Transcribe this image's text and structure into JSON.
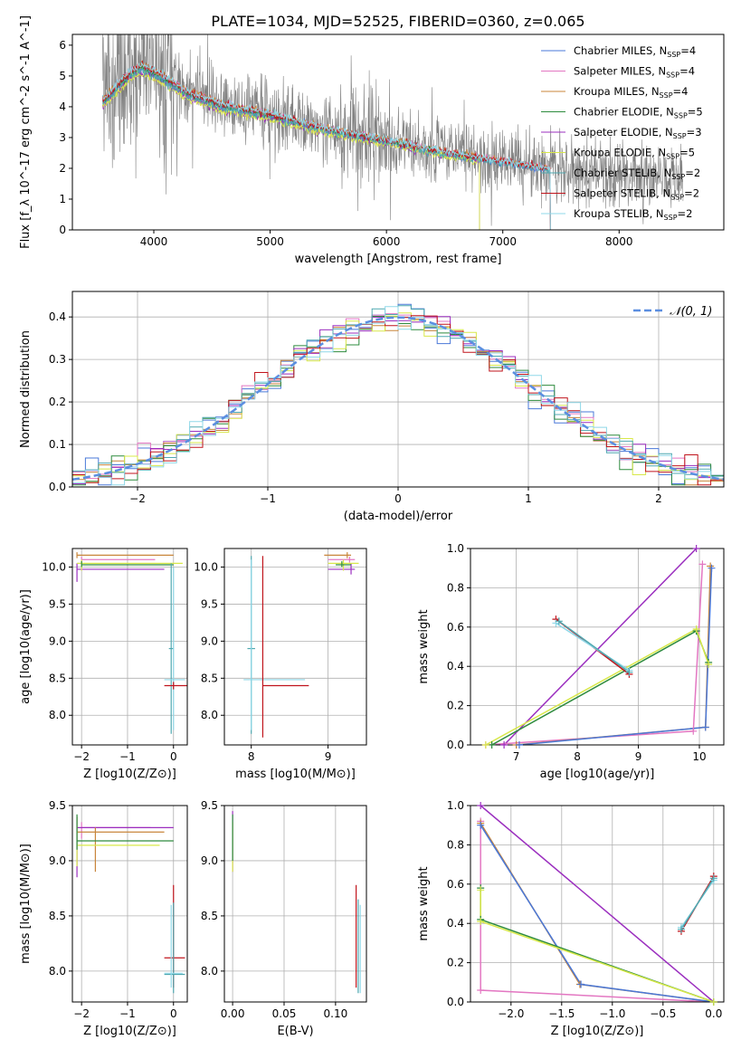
{
  "figure_title": "PLATE=1034, MJD=52525, FIBERID=0360, z=0.065",
  "colors": {
    "Chabrier MILES": "#4a78d8",
    "Salpeter MILES": "#e377c2",
    "Kroupa MILES": "#c8853a",
    "Chabrier ELODIE": "#2e8b3e",
    "Salpeter ELODIE": "#9b2fbf",
    "Kroupa ELODIE": "#d8e84a",
    "Chabrier STELIB": "#4fa8b0",
    "Salpeter STELIB": "#c0141c",
    "Kroupa STELIB": "#8fd8e8",
    "data": "#808080",
    "normal": "#5b8ee0"
  },
  "legend_spectrum": [
    {
      "name": "Chabrier MILES",
      "sub": "SSP",
      "n": "4",
      "color_key": "Chabrier MILES"
    },
    {
      "name": "Salpeter MILES",
      "sub": "SSP",
      "n": "4",
      "color_key": "Salpeter MILES"
    },
    {
      "name": "Kroupa MILES",
      "sub": "SSP",
      "n": "4",
      "color_key": "Kroupa MILES"
    },
    {
      "name": "Chabrier ELODIE",
      "sub": "SSP",
      "n": "5",
      "color_key": "Chabrier ELODIE"
    },
    {
      "name": "Salpeter ELODIE",
      "sub": "SSP",
      "n": "3",
      "color_key": "Salpeter ELODIE"
    },
    {
      "name": "Kroupa ELODIE",
      "sub": "SSP",
      "n": "5",
      "color_key": "Kroupa ELODIE"
    },
    {
      "name": "Chabrier STELIB",
      "sub": "SSP",
      "n": "2",
      "color_key": "Chabrier STELIB"
    },
    {
      "name": "Salpeter STELIB",
      "sub": "SSP",
      "n": "2",
      "color_key": "Salpeter STELIB"
    },
    {
      "name": "Kroupa STELIB",
      "sub": "SSP",
      "n": "2",
      "color_key": "Kroupa STELIB"
    }
  ],
  "chart_data": [
    {
      "id": "spectrum",
      "type": "line",
      "xlabel": "wavelength [Angstrom, rest frame]",
      "ylabel": "Flux [f_λ 10^-17 erg cm^-2 s^-1 A^-1]",
      "xlim": [
        3300,
        8900
      ],
      "ylim": [
        0,
        6.35
      ],
      "xticks": [
        4000,
        5000,
        6000,
        7000,
        8000
      ],
      "yticks": [
        0,
        1,
        2,
        3,
        4,
        5,
        6
      ],
      "grid": false,
      "legend_position": "top-right",
      "data_range": [
        3560,
        8550
      ],
      "model_ranges": {
        "MILES": [
          3560,
          7410
        ],
        "ELODIE": [
          3560,
          6800
        ],
        "STELIB": [
          3560,
          7410
        ]
      },
      "continuum_points": [
        [
          3580,
          4.3
        ],
        [
          3700,
          4.8
        ],
        [
          3800,
          5.2
        ],
        [
          3900,
          5.4
        ],
        [
          4000,
          5.2
        ],
        [
          4100,
          5.0
        ],
        [
          4300,
          4.5
        ],
        [
          4600,
          4.1
        ],
        [
          5000,
          3.8
        ],
        [
          5500,
          3.3
        ],
        [
          6000,
          2.95
        ],
        [
          6500,
          2.55
        ],
        [
          7000,
          2.25
        ],
        [
          7500,
          1.95
        ],
        [
          8000,
          1.8
        ],
        [
          8500,
          1.65
        ]
      ]
    },
    {
      "id": "residual-histogram",
      "type": "area",
      "xlabel": "(data-model)/error",
      "ylabel": "Normed distribution",
      "xlim": [
        -2.5,
        2.5
      ],
      "ylim": [
        0,
        0.46
      ],
      "xticks": [
        -2,
        -1,
        0,
        1,
        2
      ],
      "yticks": [
        0.0,
        0.1,
        0.2,
        0.3,
        0.4
      ],
      "grid": true,
      "legend_position": "top-right",
      "legend": [
        {
          "name": "𝒩(0, 1)",
          "style": "dashed",
          "color_key": "normal"
        }
      ],
      "bin_width": 0.1,
      "n_models": 9
    },
    {
      "id": "age-vs-metallicity",
      "type": "scatter",
      "xlabel": "Z [log10(Z/Z⊙)]",
      "ylabel": "age  [log10(age/yr)]",
      "xlim": [
        -2.2,
        0.3
      ],
      "ylim": [
        7.6,
        10.25
      ],
      "xticks": [
        -2,
        -1,
        0
      ],
      "yticks": [
        8.0,
        8.5,
        9.0,
        9.5,
        10.0
      ],
      "grid": true,
      "points": [
        {
          "m": "Kroupa MILES",
          "x": -2.1,
          "y": 10.16,
          "xlo": -2.1,
          "xhi": 0.0,
          "ylo": 10.12,
          "yhi": 10.2
        },
        {
          "m": "Salpeter MILES",
          "x": -2.0,
          "y": 10.1,
          "xlo": -2.0,
          "xhi": -0.4,
          "ylo": 10.06,
          "yhi": 10.14
        },
        {
          "m": "Salpeter ELODIE",
          "x": -2.1,
          "y": 9.97,
          "xlo": -2.1,
          "xhi": -0.2,
          "ylo": 9.8,
          "yhi": 10.05
        },
        {
          "m": "Kroupa ELODIE",
          "x": -2.0,
          "y": 10.05,
          "xlo": -2.1,
          "xhi": 0.2,
          "ylo": 9.95,
          "yhi": 10.1
        },
        {
          "m": "Chabrier ELODIE",
          "x": -2.0,
          "y": 10.03,
          "xlo": -2.0,
          "xhi": 0.0,
          "ylo": 10.0,
          "yhi": 10.08
        },
        {
          "m": "Chabrier STELIB",
          "x": -0.05,
          "y": 8.9,
          "xlo": -0.1,
          "xhi": 0.0,
          "ylo": 7.75,
          "yhi": 10.05
        },
        {
          "m": "Kroupa STELIB",
          "x": 0.0,
          "y": 8.48,
          "xlo": -0.2,
          "xhi": 0.25,
          "ylo": 7.8,
          "yhi": 10.0
        },
        {
          "m": "Salpeter STELIB",
          "x": 0.0,
          "y": 8.4,
          "xlo": -0.2,
          "xhi": 0.3,
          "ylo": 8.35,
          "yhi": 8.45
        }
      ]
    },
    {
      "id": "age-vs-mass",
      "type": "scatter",
      "xlabel": "mass [log10(M/M⊙)]",
      "ylabel": "",
      "xlim": [
        7.65,
        9.5
      ],
      "ylim": [
        7.6,
        10.25
      ],
      "xticks": [
        8,
        9
      ],
      "yticks": [
        8.0,
        8.5,
        9.0,
        9.5,
        10.0
      ],
      "grid": true,
      "points": [
        {
          "m": "Kroupa MILES",
          "x": 9.25,
          "y": 10.16,
          "xlo": 8.95,
          "xhi": 9.3,
          "ylo": 10.12,
          "yhi": 10.2
        },
        {
          "m": "Salpeter MILES",
          "x": 9.28,
          "y": 10.1,
          "xlo": 9.0,
          "xhi": 9.35,
          "ylo": 10.06,
          "yhi": 10.14
        },
        {
          "m": "Salpeter ELODIE",
          "x": 9.3,
          "y": 9.97,
          "xlo": 9.0,
          "xhi": 9.35,
          "ylo": 9.9,
          "yhi": 10.05
        },
        {
          "m": "Kroupa ELODIE",
          "x": 9.2,
          "y": 10.05,
          "xlo": 9.0,
          "xhi": 9.4,
          "ylo": 9.95,
          "yhi": 10.1
        },
        {
          "m": "Chabrier ELODIE",
          "x": 9.18,
          "y": 10.03,
          "xlo": 9.1,
          "xhi": 9.3,
          "ylo": 10.0,
          "yhi": 10.08
        },
        {
          "m": "Chabrier STELIB",
          "x": 8.0,
          "y": 8.9,
          "xlo": 7.95,
          "xhi": 8.05,
          "ylo": 7.75,
          "yhi": 10.15
        },
        {
          "m": "Kroupa STELIB",
          "x": 8.0,
          "y": 8.48,
          "xlo": 7.9,
          "xhi": 8.7,
          "ylo": 7.8,
          "yhi": 10.1
        },
        {
          "m": "Salpeter STELIB",
          "x": 8.15,
          "y": 8.4,
          "xlo": 8.15,
          "xhi": 8.75,
          "ylo": 7.7,
          "yhi": 10.15
        }
      ]
    },
    {
      "id": "mass-weight-vs-age",
      "type": "line",
      "xlabel": "age  [log10(age/yr)]",
      "ylabel": "mass weight",
      "xlim": [
        6.25,
        10.4
      ],
      "ylim": [
        0,
        1
      ],
      "xticks": [
        7,
        8,
        9,
        10
      ],
      "yticks": [
        0.0,
        0.2,
        0.4,
        0.6,
        0.8,
        1.0
      ],
      "grid": true,
      "series": [
        {
          "m": "Salpeter ELODIE",
          "x": [
            6.8,
            9.95
          ],
          "y": [
            0.0,
            1.0
          ]
        },
        {
          "m": "Salpeter MILES",
          "x": [
            6.5,
            9.9,
            10.05
          ],
          "y": [
            0.0,
            0.07,
            0.92
          ]
        },
        {
          "m": "Kroupa MILES",
          "x": [
            7.0,
            10.1,
            10.18
          ],
          "y": [
            0.0,
            0.09,
            0.91
          ]
        },
        {
          "m": "Chabrier MILES",
          "x": [
            7.05,
            10.1,
            10.2
          ],
          "y": [
            0.0,
            0.09,
            0.9
          ]
        },
        {
          "m": "Chabrier ELODIE",
          "x": [
            6.6,
            9.95,
            10.15
          ],
          "y": [
            0.0,
            0.58,
            0.42
          ]
        },
        {
          "m": "Kroupa ELODIE",
          "x": [
            6.5,
            9.95,
            10.15
          ],
          "y": [
            0.0,
            0.59,
            0.41
          ]
        },
        {
          "m": "Salpeter STELIB",
          "x": [
            7.65,
            8.85
          ],
          "y": [
            0.64,
            0.36
          ]
        },
        {
          "m": "Kroupa STELIB",
          "x": [
            7.65,
            8.85
          ],
          "y": [
            0.62,
            0.38
          ]
        },
        {
          "m": "Chabrier STELIB",
          "x": [
            7.7,
            8.85
          ],
          "y": [
            0.63,
            0.37
          ]
        }
      ]
    },
    {
      "id": "mass-vs-metallicity",
      "type": "scatter",
      "xlabel": "Z [log10(Z/Z⊙)]",
      "ylabel": "mass [log10(M/M⊙)]",
      "xlim": [
        -2.2,
        0.3
      ],
      "ylim": [
        7.72,
        9.5
      ],
      "xticks": [
        -2,
        -1,
        0
      ],
      "yticks": [
        8.0,
        8.5,
        9.0,
        9.5
      ],
      "grid": true,
      "points": [
        {
          "m": "Salpeter MILES",
          "x": -2.0,
          "y": 9.3,
          "xlo": -2.0,
          "xhi": -0.5,
          "ylo": 9.2,
          "yhi": 9.35
        },
        {
          "m": "Salpeter ELODIE",
          "x": -2.1,
          "y": 9.3,
          "xlo": -2.1,
          "xhi": 0.0,
          "ylo": 8.85,
          "yhi": 9.4
        },
        {
          "m": "Kroupa MILES",
          "x": -1.7,
          "y": 9.26,
          "xlo": -2.1,
          "xhi": -0.2,
          "ylo": 8.9,
          "yhi": 9.3
        },
        {
          "m": "Kroupa ELODIE",
          "x": -2.1,
          "y": 9.14,
          "xlo": -2.1,
          "xhi": -0.3,
          "ylo": 8.95,
          "yhi": 9.4
        },
        {
          "m": "Chabrier ELODIE",
          "x": -2.1,
          "y": 9.18,
          "xlo": -2.1,
          "xhi": 0.0,
          "ylo": 9.1,
          "yhi": 9.42
        },
        {
          "m": "Salpeter STELIB",
          "x": 0.0,
          "y": 8.12,
          "xlo": -0.2,
          "xhi": 0.25,
          "ylo": 7.85,
          "yhi": 8.78
        },
        {
          "m": "Chabrier STELIB",
          "x": 0.0,
          "y": 7.97,
          "xlo": -0.2,
          "xhi": 0.25,
          "ylo": 7.8,
          "yhi": 8.62
        },
        {
          "m": "Kroupa STELIB",
          "x": -0.05,
          "y": 7.98,
          "xlo": -0.2,
          "xhi": 0.2,
          "ylo": 7.85,
          "yhi": 8.6
        }
      ]
    },
    {
      "id": "mass-vs-ebv",
      "type": "scatter",
      "xlabel": "E(B-V)",
      "ylabel": "",
      "xlim": [
        -0.008,
        0.13
      ],
      "ylim": [
        7.72,
        9.5
      ],
      "xticks": [
        0.0,
        0.05,
        0.1
      ],
      "xticklabels": [
        "0.00",
        "0.05",
        "0.10"
      ],
      "yticks": [
        8.0,
        8.5,
        9.0,
        9.5
      ],
      "grid": true,
      "points": [
        {
          "m": "Salpeter ELODIE",
          "x": 0.0,
          "y": 9.3,
          "ylo": 8.9,
          "yhi": 9.45
        },
        {
          "m": "Kroupa ELODIE",
          "x": 0.0,
          "y": 9.15,
          "ylo": 8.9,
          "yhi": 9.35
        },
        {
          "m": "Chabrier ELODIE",
          "x": 0.0,
          "y": 9.18,
          "ylo": 9.0,
          "yhi": 9.42
        },
        {
          "m": "Salpeter STELIB",
          "x": 0.12,
          "y": 8.4,
          "ylo": 7.85,
          "yhi": 8.78
        },
        {
          "m": "Chabrier STELIB",
          "x": 0.122,
          "y": 8.2,
          "ylo": 7.8,
          "yhi": 8.65
        },
        {
          "m": "Kroupa STELIB",
          "x": 0.124,
          "y": 8.15,
          "ylo": 7.8,
          "yhi": 8.6
        }
      ]
    },
    {
      "id": "mass-weight-vs-metallicity",
      "type": "line",
      "xlabel": "Z [log10(Z/Z⊙)]",
      "ylabel": "mass weight",
      "xlim": [
        -2.4,
        0.1
      ],
      "ylim": [
        0,
        1
      ],
      "xticks": [
        -2.0,
        -1.5,
        -1.0,
        -0.5,
        0.0
      ],
      "yticks": [
        0.0,
        0.2,
        0.4,
        0.6,
        0.8,
        1.0
      ],
      "grid": true,
      "series": [
        {
          "m": "Salpeter ELODIE",
          "x": [
            -2.3,
            0.0
          ],
          "y": [
            1.0,
            0.0
          ]
        },
        {
          "m": "Salpeter MILES",
          "x": [
            -2.3,
            -2.3,
            0.0
          ],
          "y": [
            0.92,
            0.06,
            0.0
          ]
        },
        {
          "m": "Kroupa MILES",
          "x": [
            -2.3,
            -1.32,
            0.0
          ],
          "y": [
            0.91,
            0.09,
            0.0
          ]
        },
        {
          "m": "Chabrier MILES",
          "x": [
            -2.3,
            -1.31,
            0.0
          ],
          "y": [
            0.9,
            0.09,
            0.0
          ]
        },
        {
          "m": "Chabrier ELODIE",
          "x": [
            -2.3,
            -2.3,
            0.0
          ],
          "y": [
            0.58,
            0.42,
            0.0
          ]
        },
        {
          "m": "Kroupa ELODIE",
          "x": [
            -2.3,
            -2.3,
            0.0
          ],
          "y": [
            0.57,
            0.41,
            0.0
          ]
        },
        {
          "m": "Salpeter STELIB",
          "x": [
            -0.32,
            0.0
          ],
          "y": [
            0.36,
            0.64
          ]
        },
        {
          "m": "Kroupa STELIB",
          "x": [
            -0.32,
            0.0
          ],
          "y": [
            0.38,
            0.62
          ]
        },
        {
          "m": "Chabrier STELIB",
          "x": [
            -0.32,
            0.0
          ],
          "y": [
            0.37,
            0.63
          ]
        }
      ]
    }
  ]
}
